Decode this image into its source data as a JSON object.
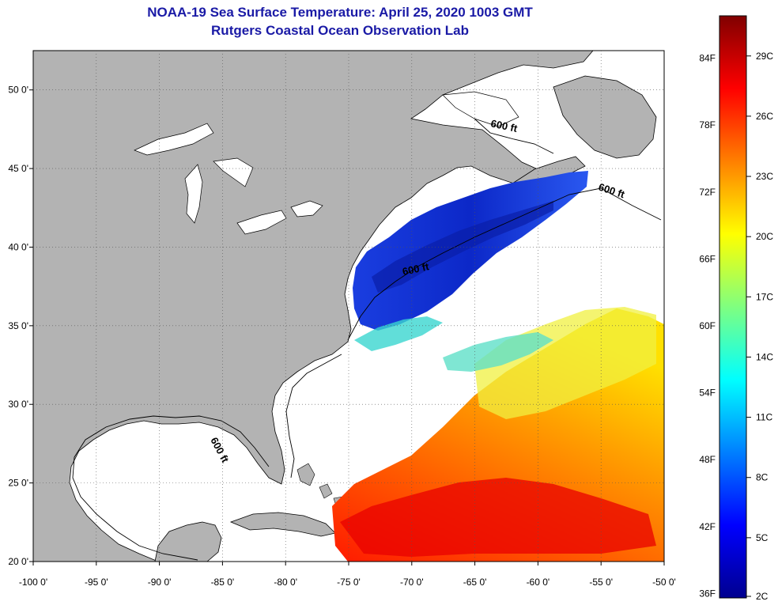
{
  "header": {
    "title": "NOAA-19 Sea Surface Temperature:  April 25, 2020 1003 GMT",
    "subtitle": "Rutgers Coastal Ocean Observation Lab"
  },
  "map": {
    "lat_labels": [
      "50 0'",
      "45 0'",
      "40 0'",
      "35 0'",
      "30 0'",
      "25 0'",
      "20 0'"
    ],
    "lon_labels": [
      "-100 0'",
      "-95 0'",
      "-90 0'",
      "-85 0'",
      "-80 0'",
      "-75 0'",
      "-70 0'",
      "-65 0'",
      "-60 0'",
      "-55 0'",
      "-50 0'"
    ],
    "lat_range": [
      20,
      52.5
    ],
    "lon_range": [
      -100,
      -50
    ],
    "contour_label": "600 ft",
    "land_color": "#b3b3b3",
    "water_color": "#ffffff"
  },
  "colorbar": {
    "fahrenheit": [
      "84F",
      "78F",
      "72F",
      "66F",
      "60F",
      "54F",
      "48F",
      "42F",
      "36F"
    ],
    "celsius": [
      "29C",
      "26C",
      "23C",
      "20C",
      "17C",
      "14C",
      "11C",
      "8C",
      "5C",
      "2C"
    ],
    "range_c": [
      2,
      31
    ]
  }
}
